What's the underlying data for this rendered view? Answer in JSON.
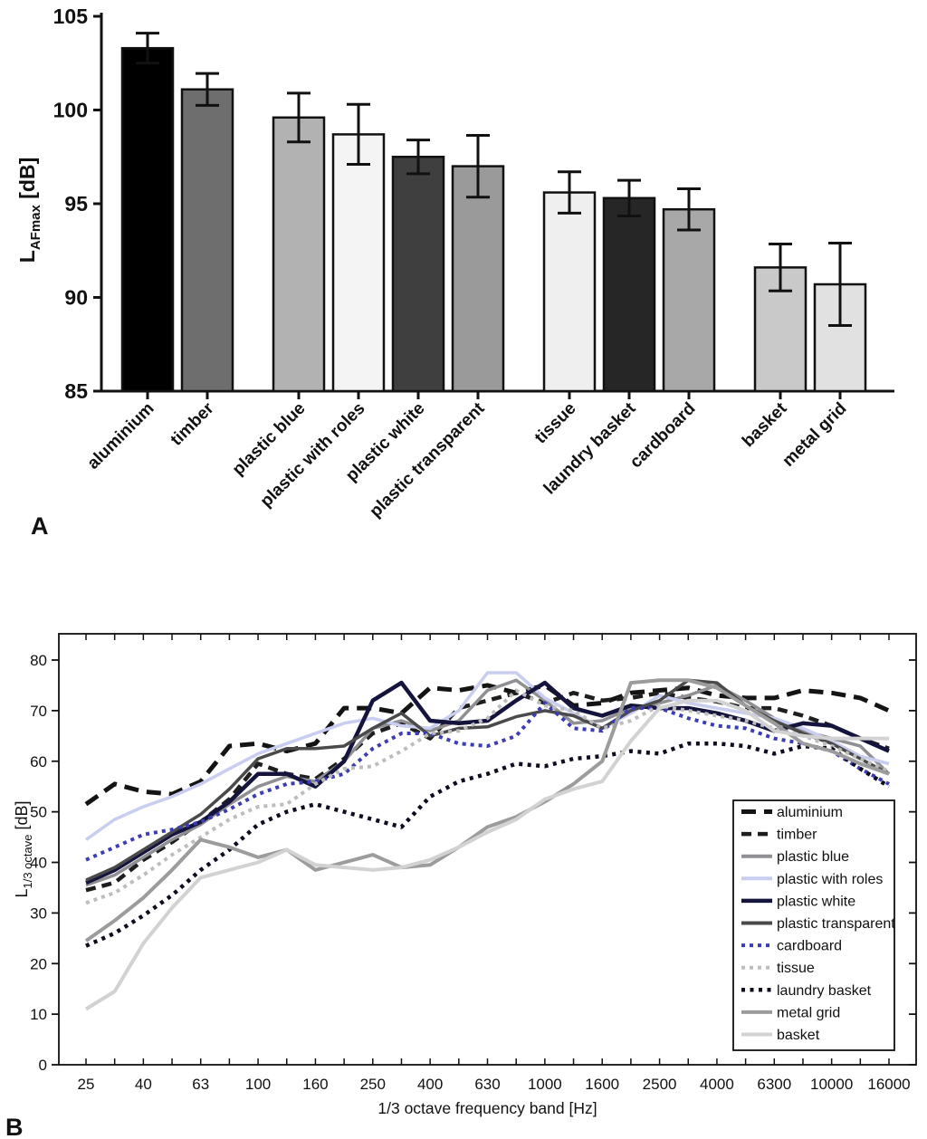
{
  "figure": {
    "background": "#ffffff",
    "panel_a_label": "A",
    "panel_b_label": "B"
  },
  "chart_data": [
    {
      "type": "bar",
      "title": "",
      "xlabel": "",
      "ylabel_main": "L",
      "ylabel_sub": "AFmax",
      "ylabel_unit": " [dB]",
      "ylim": [
        85,
        105
      ],
      "yticks": [
        85,
        90,
        95,
        100,
        105
      ],
      "grid": false,
      "categories": [
        "aluminium",
        "timber",
        "plastic blue",
        "plastic with roles",
        "plastic white",
        "plastic transparent",
        "tissue",
        "laundry basket",
        "cardboard",
        "basket",
        "metal grid"
      ],
      "values": [
        103.3,
        101.1,
        99.6,
        98.7,
        97.5,
        97.0,
        95.6,
        95.3,
        94.7,
        91.6,
        90.7
      ],
      "errors": [
        0.8,
        0.85,
        1.3,
        1.6,
        0.9,
        1.65,
        1.1,
        0.95,
        1.1,
        1.25,
        2.2
      ],
      "bar_colors": [
        "#000000",
        "#6e6e6e",
        "#b2b2b2",
        "#f4f4f4",
        "#3f3f3f",
        "#9a9a9a",
        "#efefef",
        "#262626",
        "#a8a8a8",
        "#c9c9c9",
        "#e1e1e1"
      ],
      "bar_groups": [
        2,
        4,
        3,
        2
      ]
    },
    {
      "type": "line",
      "title": "",
      "xlabel": "1/3 octave frequency band [Hz]",
      "ylabel_main": "L",
      "ylabel_sub": "1/3 octave",
      "ylabel_unit": " [dB]",
      "ylim": [
        0,
        85
      ],
      "yticks": [
        0,
        10,
        20,
        30,
        40,
        50,
        60,
        70,
        80
      ],
      "grid": false,
      "legend_position": "lower right",
      "x_bands": [
        25,
        31.5,
        40,
        50,
        63,
        80,
        100,
        125,
        160,
        200,
        250,
        315,
        400,
        500,
        630,
        800,
        1000,
        1250,
        1600,
        2000,
        2500,
        3150,
        4000,
        5000,
        6300,
        8000,
        10000,
        12500,
        16000
      ],
      "x_tick_labels": [
        "25",
        "40",
        "63",
        "100",
        "160",
        "250",
        "400",
        "630",
        "1000",
        "1600",
        "2500",
        "4000",
        "6300",
        "10000",
        "16000"
      ],
      "legend_order": [
        "aluminium",
        "timber",
        "plastic blue",
        "plastic with roles",
        "plastic white",
        "plastic transparent",
        "cardboard",
        "tissue",
        "laundry basket",
        "metal grid",
        "basket"
      ],
      "series": [
        {
          "name": "aluminium",
          "color": "#141414",
          "style": "dashed",
          "dash": "16,9",
          "width": 5,
          "values": [
            51.5,
            55.5,
            54,
            53.5,
            56,
            63,
            63.5,
            62,
            63.5,
            70.5,
            70.5,
            69.5,
            74.5,
            74,
            75,
            73.5,
            75,
            71,
            71.5,
            73.5,
            74,
            74.5,
            73,
            72.5,
            72.5,
            74,
            73.5,
            72.5,
            70
          ]
        },
        {
          "name": "timber",
          "color": "#1e1e1e",
          "style": "dashed",
          "dash": "11,7",
          "width": 4.5,
          "values": [
            34.5,
            36,
            40.5,
            44,
            48,
            52.5,
            59.5,
            57.5,
            56.5,
            60.5,
            65.5,
            67.5,
            64.5,
            70.5,
            72,
            73.5,
            71.5,
            73.5,
            72,
            72.5,
            73.5,
            72.5,
            71.8,
            70.5,
            70.5,
            69,
            67,
            64.5,
            62.5
          ]
        },
        {
          "name": "plastic blue",
          "color": "#8f8f94",
          "style": "solid",
          "dash": "",
          "width": 3.5,
          "values": [
            35.5,
            37.5,
            41,
            44.5,
            47.5,
            51.5,
            55,
            57,
            56,
            60,
            66.5,
            68,
            66,
            68,
            74,
            76,
            72,
            67.5,
            68,
            70.5,
            71.5,
            73,
            75,
            72,
            68.5,
            66,
            64.5,
            63,
            57.5
          ]
        },
        {
          "name": "plastic with roles",
          "color": "#c9cdf0",
          "style": "solid",
          "dash": "",
          "width": 3.5,
          "values": [
            44.5,
            48.5,
            51,
            53,
            55.5,
            58.5,
            61.5,
            63.5,
            65.5,
            67.5,
            68.5,
            67,
            66.5,
            70,
            77.5,
            77.5,
            72.5,
            69.5,
            66.5,
            69.5,
            73,
            71.5,
            70.5,
            69.5,
            68.5,
            66.5,
            64,
            61,
            59.5
          ]
        },
        {
          "name": "plastic white",
          "color": "#14143c",
          "style": "solid",
          "dash": "",
          "width": 4.5,
          "values": [
            36,
            38.5,
            42,
            45.5,
            48,
            52,
            57.5,
            57.5,
            55,
            60,
            72,
            75.5,
            68,
            67.5,
            68,
            72,
            75.5,
            70.5,
            69,
            71,
            70.5,
            70.5,
            69.5,
            68,
            66,
            67.5,
            67,
            64.5,
            62
          ]
        },
        {
          "name": "plastic transparent",
          "color": "#4a4a4a",
          "style": "solid",
          "dash": "",
          "width": 3.5,
          "values": [
            36.5,
            39,
            42.5,
            46,
            49.5,
            54.5,
            60.5,
            62.5,
            62.5,
            63,
            66.5,
            69.5,
            65,
            66.5,
            66.8,
            68.8,
            70,
            69,
            66.5,
            70,
            72,
            76,
            75.5,
            71,
            68,
            65.5,
            63.5,
            60.5,
            57.5
          ]
        },
        {
          "name": "cardboard",
          "color": "#3c3cb4",
          "style": "dotted",
          "dash": "4,5",
          "width": 4,
          "values": [
            40.5,
            43,
            45.5,
            46.5,
            48,
            50.5,
            53.5,
            55.5,
            56,
            57.5,
            62.5,
            65.5,
            65.5,
            63.5,
            63,
            65,
            71.5,
            66.5,
            66,
            70.5,
            70.5,
            68.5,
            67,
            66.5,
            64.5,
            63.5,
            62,
            58.5,
            55.5
          ]
        },
        {
          "name": "tissue",
          "color": "#bdbdbd",
          "style": "dotted",
          "dash": "4,5",
          "width": 4,
          "values": [
            32,
            34,
            37.5,
            41.5,
            45,
            48.5,
            51,
            51.5,
            55.5,
            58.5,
            59,
            62,
            65.5,
            66,
            68.5,
            74,
            71,
            70,
            66.5,
            68,
            71,
            70,
            69,
            68,
            66.5,
            65,
            63,
            60.5,
            58
          ]
        },
        {
          "name": "laundry basket",
          "color": "#0d0d1f",
          "style": "dotted",
          "dash": "4,5.5",
          "width": 4.5,
          "values": [
            23.5,
            26,
            29.5,
            33.5,
            38.5,
            42.5,
            47.5,
            50,
            51.5,
            50,
            48.5,
            47,
            53,
            56,
            57.5,
            59.5,
            59,
            60.5,
            61,
            62,
            61.5,
            63.5,
            63.5,
            63,
            61.5,
            63,
            62.5,
            58.5,
            55
          ]
        },
        {
          "name": "metal grid",
          "color": "#9c9c9c",
          "style": "solid",
          "dash": "",
          "width": 4,
          "values": [
            24.5,
            28.5,
            33,
            38.5,
            44.5,
            43,
            41,
            42.5,
            38.5,
            40,
            41.5,
            39,
            39.5,
            43,
            47,
            49,
            52,
            55.5,
            60,
            75.5,
            76,
            76,
            74.5,
            71,
            67.5,
            63.5,
            62,
            59.5,
            57.5
          ]
        },
        {
          "name": "basket",
          "color": "#d2d2d2",
          "style": "solid",
          "dash": "",
          "width": 4,
          "values": [
            11,
            14.5,
            24,
            31,
            37,
            38.5,
            40,
            42.5,
            39.5,
            39,
            38.5,
            39,
            40.5,
            43,
            46,
            48.5,
            52.5,
            54.5,
            56,
            64,
            70.5,
            72,
            72,
            70,
            66,
            65,
            64.5,
            64.5,
            64.5
          ]
        }
      ]
    }
  ]
}
